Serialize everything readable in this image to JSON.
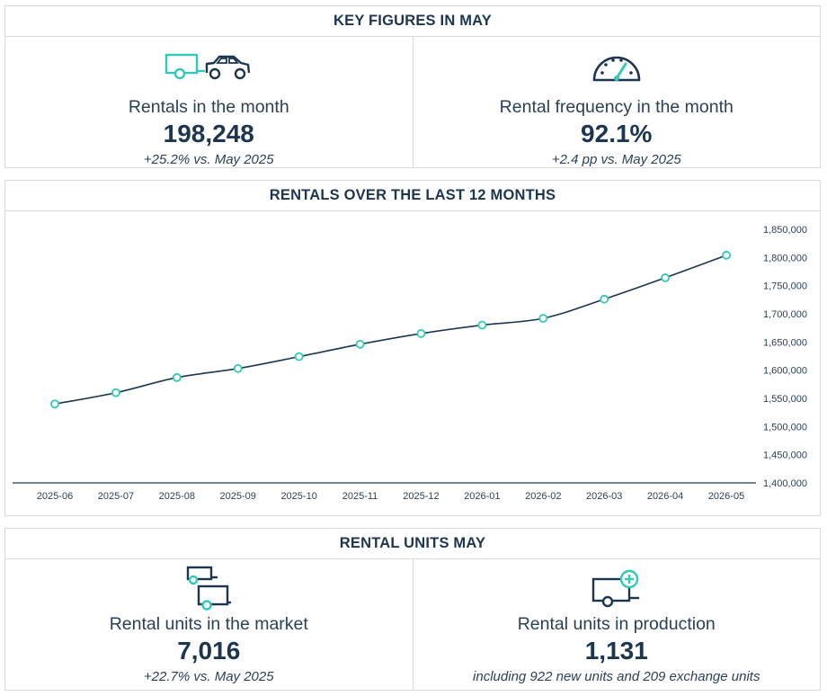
{
  "key_figures": {
    "title": "KEY FIGURES IN MAY",
    "rentals": {
      "label": "Rentals in the month",
      "value": "198,248",
      "sub": "+25.2% vs. May 2025"
    },
    "frequency": {
      "label": "Rental frequency in the month",
      "value": "92.1%",
      "sub": "+2.4 pp vs. May 2025"
    }
  },
  "chart_section": {
    "title": "RENTALS OVER THE LAST 12 MONTHS"
  },
  "chart_data": {
    "type": "line",
    "title": "RENTALS OVER THE LAST 12 MONTHS",
    "categories": [
      "2025-06",
      "2025-07",
      "2025-08",
      "2025-09",
      "2025-10",
      "2025-11",
      "2025-12",
      "2026-01",
      "2026-02",
      "2026-03",
      "2026-04",
      "2026-05"
    ],
    "series": [
      {
        "values": [
          1540000,
          1560000,
          1587000,
          1603000,
          1624000,
          1646000,
          1665000,
          1680000,
          1692000,
          1726000,
          1764000,
          1804000
        ]
      }
    ],
    "ylim": [
      1400000,
      1850000
    ],
    "yticks": [
      "1,850,000",
      "1,800,000",
      "1,750,000",
      "1,700,000",
      "1,650,000",
      "1,600,000",
      "1,550,000",
      "1,500,000",
      "1,450,000",
      "1,400,000"
    ],
    "ytick_values": [
      1850000,
      1800000,
      1750000,
      1700000,
      1650000,
      1600000,
      1550000,
      1500000,
      1450000,
      1400000
    ],
    "yaxis_position": "right",
    "grid": false,
    "line_color": "#1d3650",
    "marker_color": "#33c9b7"
  },
  "units": {
    "title": "RENTAL UNITS MAY",
    "market": {
      "label": "Rental units in the market",
      "value": "7,016",
      "sub": "+22.7% vs. May 2025"
    },
    "production": {
      "label": "Rental units in production",
      "value": "1,131",
      "sub": "including 922 new units and 209 exchange units"
    }
  },
  "icons": {
    "rentals": "trailer-and-car-icon",
    "frequency": "speedometer-icon",
    "market": "stacked-trailers-icon",
    "production": "trailer-plus-icon"
  },
  "colors": {
    "navy": "#1d3650",
    "teal": "#33c9b7",
    "border": "#d6dadf"
  }
}
